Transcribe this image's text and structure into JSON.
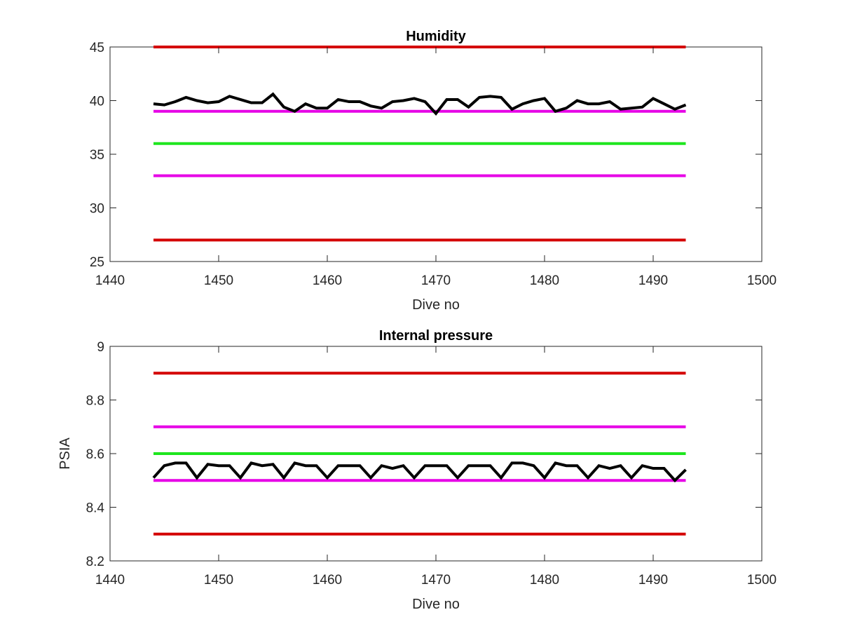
{
  "chart_data": [
    {
      "type": "line",
      "title": "Humidity",
      "xlabel": "Dive no",
      "ylabel": "",
      "xlim": [
        1440,
        1500
      ],
      "ylim": [
        25,
        45
      ],
      "xticks": [
        1440,
        1450,
        1460,
        1470,
        1480,
        1490,
        1500
      ],
      "yticks": [
        25,
        30,
        35,
        40,
        45
      ],
      "grid": false,
      "legend": "none",
      "reference_lines": [
        {
          "y": 45,
          "x_range": [
            1444,
            1493
          ],
          "color": "#d40000"
        },
        {
          "y": 39,
          "x_range": [
            1444,
            1493
          ],
          "color": "#e600e6"
        },
        {
          "y": 36,
          "x_range": [
            1444,
            1493
          ],
          "color": "#1ee61e"
        },
        {
          "y": 33,
          "x_range": [
            1444,
            1493
          ],
          "color": "#e600e6"
        },
        {
          "y": 27,
          "x_range": [
            1444,
            1493
          ],
          "color": "#d40000"
        }
      ],
      "series": [
        {
          "color": "#000000",
          "x": [
            1444,
            1445,
            1446,
            1447,
            1448,
            1449,
            1450,
            1451,
            1452,
            1453,
            1454,
            1455,
            1456,
            1457,
            1458,
            1459,
            1460,
            1461,
            1462,
            1463,
            1464,
            1465,
            1466,
            1467,
            1468,
            1469,
            1470,
            1471,
            1472,
            1473,
            1474,
            1475,
            1476,
            1477,
            1478,
            1479,
            1480,
            1481,
            1482,
            1483,
            1484,
            1485,
            1486,
            1487,
            1488,
            1489,
            1490,
            1491,
            1492,
            1493
          ],
          "values": [
            39.7,
            39.6,
            39.9,
            40.3,
            40.0,
            39.8,
            39.9,
            40.4,
            40.1,
            39.8,
            39.8,
            40.6,
            39.4,
            39.0,
            39.7,
            39.3,
            39.3,
            40.1,
            39.9,
            39.9,
            39.5,
            39.3,
            39.9,
            40.0,
            40.2,
            39.9,
            38.8,
            40.1,
            40.1,
            39.4,
            40.3,
            40.4,
            40.3,
            39.2,
            39.7,
            40.0,
            40.2,
            39.0,
            39.3,
            40.0,
            39.7,
            39.7,
            39.9,
            39.2,
            39.3,
            39.4,
            40.2,
            39.7,
            39.2,
            39.6
          ]
        }
      ]
    },
    {
      "type": "line",
      "title": "Internal pressure",
      "xlabel": "Dive no",
      "ylabel": "PSIA",
      "xlim": [
        1440,
        1500
      ],
      "ylim": [
        8.2,
        9
      ],
      "xticks": [
        1440,
        1450,
        1460,
        1470,
        1480,
        1490,
        1500
      ],
      "yticks": [
        8.2,
        8.4,
        8.6,
        8.8,
        9
      ],
      "grid": false,
      "legend": "none",
      "reference_lines": [
        {
          "y": 8.9,
          "x_range": [
            1444,
            1493
          ],
          "color": "#d40000"
        },
        {
          "y": 8.7,
          "x_range": [
            1444,
            1493
          ],
          "color": "#e600e6"
        },
        {
          "y": 8.6,
          "x_range": [
            1444,
            1493
          ],
          "color": "#1ee61e"
        },
        {
          "y": 8.5,
          "x_range": [
            1444,
            1493
          ],
          "color": "#e600e6"
        },
        {
          "y": 8.3,
          "x_range": [
            1444,
            1493
          ],
          "color": "#d40000"
        }
      ],
      "series": [
        {
          "color": "#000000",
          "x": [
            1444,
            1445,
            1446,
            1447,
            1448,
            1449,
            1450,
            1451,
            1452,
            1453,
            1454,
            1455,
            1456,
            1457,
            1458,
            1459,
            1460,
            1461,
            1462,
            1463,
            1464,
            1465,
            1466,
            1467,
            1468,
            1469,
            1470,
            1471,
            1472,
            1473,
            1474,
            1475,
            1476,
            1477,
            1478,
            1479,
            1480,
            1481,
            1482,
            1483,
            1484,
            1485,
            1486,
            1487,
            1488,
            1489,
            1490,
            1491,
            1492,
            1493
          ],
          "values": [
            8.51,
            8.555,
            8.565,
            8.565,
            8.51,
            8.56,
            8.555,
            8.555,
            8.51,
            8.565,
            8.555,
            8.56,
            8.51,
            8.565,
            8.555,
            8.555,
            8.51,
            8.555,
            8.555,
            8.555,
            8.51,
            8.555,
            8.545,
            8.555,
            8.51,
            8.555,
            8.555,
            8.555,
            8.51,
            8.555,
            8.555,
            8.555,
            8.51,
            8.565,
            8.565,
            8.555,
            8.51,
            8.565,
            8.555,
            8.555,
            8.51,
            8.555,
            8.545,
            8.555,
            8.51,
            8.555,
            8.545,
            8.545,
            8.5,
            8.54
          ]
        }
      ]
    }
  ]
}
